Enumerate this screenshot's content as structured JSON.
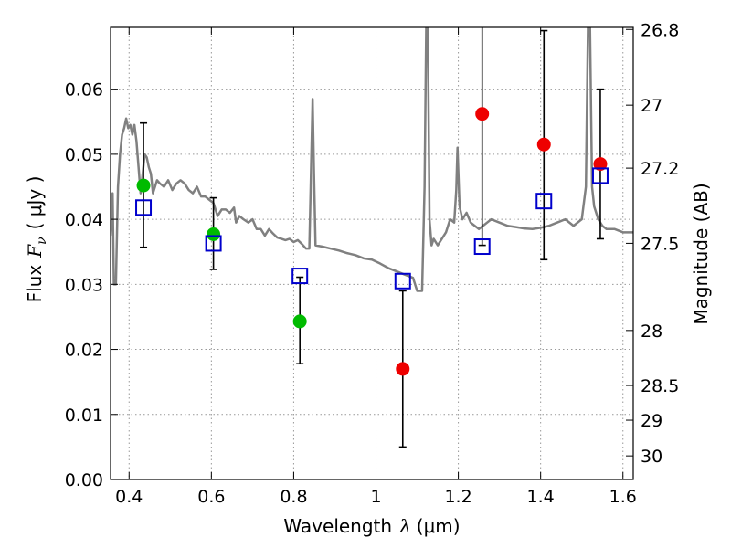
{
  "chart_data": {
    "type": "scatter",
    "xlabel": "Wavelength",
    "xlabel_symbol": "λ",
    "xlabel_unit": "(μm)",
    "ylabel": "Flux",
    "ylabel_symbol": "F",
    "ylabel_subscript": "ν",
    "ylabel_unit": "( μJy )",
    "ylabel_right": "Magnitude (AB)",
    "xlim": [
      0.355,
      1.625
    ],
    "ylim": [
      0.0,
      0.0695
    ],
    "grid": true,
    "x_ticks": [
      0.4,
      0.6,
      0.8,
      1.0,
      1.2,
      1.4,
      1.6
    ],
    "x_tick_labels": [
      "0.4",
      "0.6",
      "0.8",
      "1",
      "1.2",
      "1.4",
      "1.6"
    ],
    "y_ticks": [
      0.0,
      0.01,
      0.02,
      0.03,
      0.04,
      0.05,
      0.06
    ],
    "y_tick_labels": [
      "0.00",
      "0.01",
      "0.02",
      "0.03",
      "0.04",
      "0.05",
      "0.06"
    ],
    "right_ticks": [
      {
        "label": "26.8",
        "mag": 26.8
      },
      {
        "label": "27",
        "mag": 27.0
      },
      {
        "label": "27.2",
        "mag": 27.2
      },
      {
        "label": "27.5",
        "mag": 27.5
      },
      {
        "label": "28",
        "mag": 28.0
      },
      {
        "label": "28.5",
        "mag": 28.5
      },
      {
        "label": "29",
        "mag": 29.0
      },
      {
        "label": "30",
        "mag": 30.0
      }
    ],
    "colors": {
      "template": "#808080",
      "green": "#00bb00",
      "red": "#ee0000",
      "model_box": "#0000cc",
      "errorbar": "#000000",
      "grid": "#999999"
    },
    "series": [
      {
        "name": "template spectrum",
        "kind": "line",
        "points": [
          [
            0.355,
            0.0375
          ],
          [
            0.36,
            0.044
          ],
          [
            0.363,
            0.03
          ],
          [
            0.368,
            0.03
          ],
          [
            0.373,
            0.045
          ],
          [
            0.378,
            0.05
          ],
          [
            0.383,
            0.053
          ],
          [
            0.388,
            0.054
          ],
          [
            0.393,
            0.0555
          ],
          [
            0.398,
            0.054
          ],
          [
            0.403,
            0.0545
          ],
          [
            0.408,
            0.053
          ],
          [
            0.413,
            0.0545
          ],
          [
            0.418,
            0.052
          ],
          [
            0.423,
            0.048
          ],
          [
            0.428,
            0.044
          ],
          [
            0.433,
            0.047
          ],
          [
            0.438,
            0.05
          ],
          [
            0.443,
            0.0495
          ],
          [
            0.448,
            0.048
          ],
          [
            0.453,
            0.047
          ],
          [
            0.458,
            0.044
          ],
          [
            0.463,
            0.045
          ],
          [
            0.468,
            0.046
          ],
          [
            0.475,
            0.0455
          ],
          [
            0.485,
            0.045
          ],
          [
            0.495,
            0.046
          ],
          [
            0.505,
            0.0445
          ],
          [
            0.515,
            0.0455
          ],
          [
            0.525,
            0.046
          ],
          [
            0.535,
            0.0455
          ],
          [
            0.545,
            0.0445
          ],
          [
            0.555,
            0.044
          ],
          [
            0.565,
            0.045
          ],
          [
            0.575,
            0.0435
          ],
          [
            0.585,
            0.0435
          ],
          [
            0.595,
            0.043
          ],
          [
            0.605,
            0.0425
          ],
          [
            0.615,
            0.0405
          ],
          [
            0.625,
            0.0415
          ],
          [
            0.635,
            0.0415
          ],
          [
            0.645,
            0.041
          ],
          [
            0.655,
            0.0418
          ],
          [
            0.66,
            0.0395
          ],
          [
            0.668,
            0.0405
          ],
          [
            0.678,
            0.04
          ],
          [
            0.69,
            0.0395
          ],
          [
            0.7,
            0.04
          ],
          [
            0.71,
            0.0385
          ],
          [
            0.72,
            0.0385
          ],
          [
            0.73,
            0.0375
          ],
          [
            0.74,
            0.0385
          ],
          [
            0.75,
            0.0378
          ],
          [
            0.76,
            0.0372
          ],
          [
            0.77,
            0.037
          ],
          [
            0.78,
            0.0368
          ],
          [
            0.79,
            0.037
          ],
          [
            0.8,
            0.0365
          ],
          [
            0.81,
            0.0368
          ],
          [
            0.82,
            0.0362
          ],
          [
            0.83,
            0.0355
          ],
          [
            0.838,
            0.0355
          ],
          [
            0.843,
            0.05
          ],
          [
            0.846,
            0.0585
          ],
          [
            0.849,
            0.048
          ],
          [
            0.853,
            0.036
          ],
          [
            0.87,
            0.0358
          ],
          [
            0.89,
            0.0355
          ],
          [
            0.91,
            0.0352
          ],
          [
            0.93,
            0.0348
          ],
          [
            0.95,
            0.0345
          ],
          [
            0.97,
            0.034
          ],
          [
            0.99,
            0.0338
          ],
          [
            1.01,
            0.0332
          ],
          [
            1.03,
            0.0325
          ],
          [
            1.05,
            0.032
          ],
          [
            1.07,
            0.0315
          ],
          [
            1.09,
            0.031
          ],
          [
            1.1,
            0.029
          ],
          [
            1.112,
            0.029
          ],
          [
            1.118,
            0.045
          ],
          [
            1.122,
            0.0695
          ],
          [
            1.126,
            0.0695
          ],
          [
            1.13,
            0.04
          ],
          [
            1.135,
            0.036
          ],
          [
            1.14,
            0.037
          ],
          [
            1.15,
            0.036
          ],
          [
            1.16,
            0.037
          ],
          [
            1.17,
            0.038
          ],
          [
            1.18,
            0.04
          ],
          [
            1.19,
            0.0395
          ],
          [
            1.195,
            0.0445
          ],
          [
            1.198,
            0.051
          ],
          [
            1.203,
            0.042
          ],
          [
            1.21,
            0.04
          ],
          [
            1.22,
            0.041
          ],
          [
            1.23,
            0.0395
          ],
          [
            1.24,
            0.039
          ],
          [
            1.25,
            0.0385
          ],
          [
            1.26,
            0.039
          ],
          [
            1.27,
            0.0395
          ],
          [
            1.28,
            0.04
          ],
          [
            1.3,
            0.0395
          ],
          [
            1.32,
            0.039
          ],
          [
            1.34,
            0.0388
          ],
          [
            1.36,
            0.0386
          ],
          [
            1.38,
            0.0385
          ],
          [
            1.4,
            0.0387
          ],
          [
            1.42,
            0.039
          ],
          [
            1.44,
            0.0395
          ],
          [
            1.46,
            0.04
          ],
          [
            1.48,
            0.039
          ],
          [
            1.5,
            0.04
          ],
          [
            1.51,
            0.045
          ],
          [
            1.515,
            0.0695
          ],
          [
            1.52,
            0.0695
          ],
          [
            1.525,
            0.045
          ],
          [
            1.53,
            0.042
          ],
          [
            1.54,
            0.04
          ],
          [
            1.55,
            0.039
          ],
          [
            1.56,
            0.0385
          ],
          [
            1.58,
            0.0385
          ],
          [
            1.6,
            0.038
          ],
          [
            1.625,
            0.038
          ]
        ]
      },
      {
        "name": "observed (green)",
        "kind": "marker",
        "marker": "circle",
        "color_key": "green",
        "points": [
          {
            "x": 0.435,
            "y": 0.0452
          },
          {
            "x": 0.605,
            "y": 0.0377
          },
          {
            "x": 0.815,
            "y": 0.0243
          }
        ]
      },
      {
        "name": "observed (red)",
        "kind": "marker",
        "marker": "circle",
        "color_key": "red",
        "points": [
          {
            "x": 1.065,
            "y": 0.017
          },
          {
            "x": 1.258,
            "y": 0.0562
          },
          {
            "x": 1.408,
            "y": 0.0515
          },
          {
            "x": 1.545,
            "y": 0.0485
          }
        ]
      },
      {
        "name": "model photometry",
        "kind": "marker",
        "marker": "open-square",
        "color_key": "model_box",
        "points": [
          {
            "x": 0.435,
            "y": 0.0418
          },
          {
            "x": 0.605,
            "y": 0.0363
          },
          {
            "x": 0.815,
            "y": 0.0313
          },
          {
            "x": 1.065,
            "y": 0.0305
          },
          {
            "x": 1.258,
            "y": 0.0358
          },
          {
            "x": 1.408,
            "y": 0.0428
          },
          {
            "x": 1.545,
            "y": 0.0467
          }
        ]
      },
      {
        "name": "error bars",
        "kind": "errorbar",
        "color_key": "errorbar",
        "points": [
          {
            "x": 0.435,
            "low": 0.0357,
            "high": 0.0548
          },
          {
            "x": 0.605,
            "low": 0.0323,
            "high": 0.0433
          },
          {
            "x": 0.815,
            "low": 0.0178,
            "high": 0.0311
          },
          {
            "x": 1.065,
            "low": 0.005,
            "high": 0.029
          },
          {
            "x": 1.258,
            "low": 0.036,
            "high": 0.07
          },
          {
            "x": 1.408,
            "low": 0.0338,
            "high": 0.069
          },
          {
            "x": 1.545,
            "low": 0.037,
            "high": 0.06
          }
        ]
      }
    ]
  }
}
